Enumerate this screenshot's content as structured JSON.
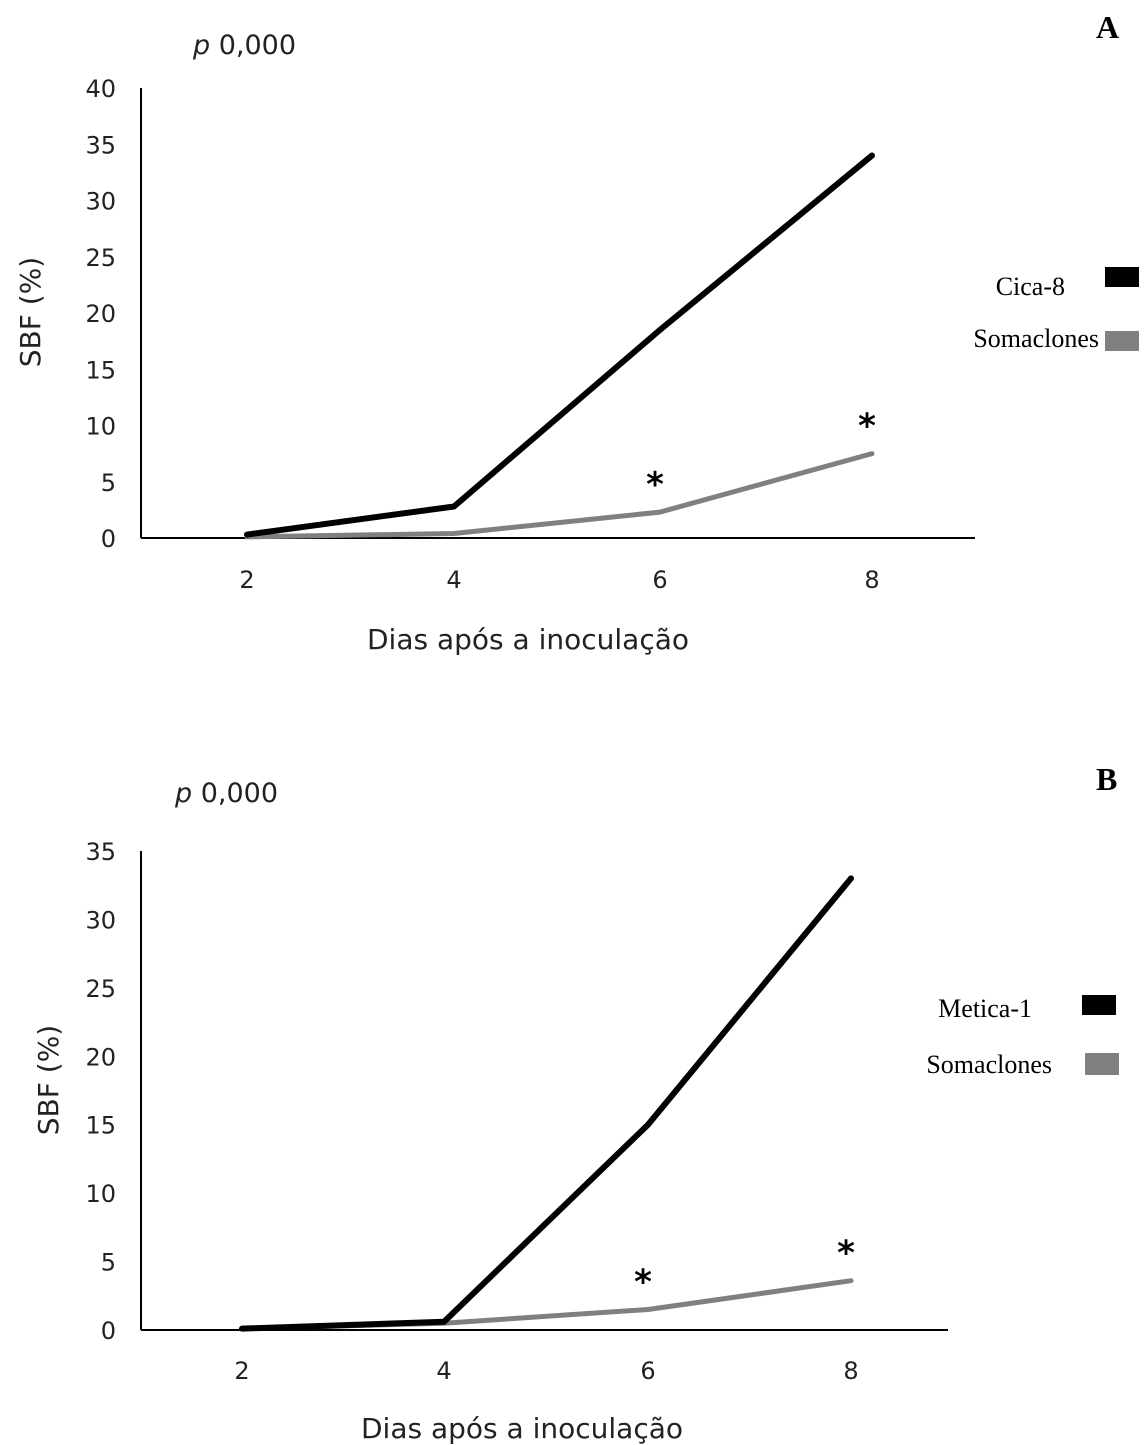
{
  "chart_data": [
    {
      "type": "line",
      "panel_label": "A",
      "annotation": "p 0,000",
      "x": [
        2,
        4,
        6,
        8
      ],
      "xlabel": "Dias após a inoculação",
      "ylabel": "SBF (%)",
      "ylim": [
        0,
        40
      ],
      "yticks": [
        0,
        5,
        10,
        15,
        20,
        25,
        30,
        35,
        40
      ],
      "series": [
        {
          "name": "Cica-8",
          "color": "#000000",
          "values": [
            0.3,
            2.8,
            18.5,
            34.0
          ]
        },
        {
          "name": "Somaclones",
          "color": "#808080",
          "values": [
            0.1,
            0.4,
            2.3,
            7.5
          ],
          "significant": [
            false,
            false,
            true,
            true
          ]
        }
      ],
      "significance_marker": "*",
      "legend_position": "right",
      "grid": false
    },
    {
      "type": "line",
      "panel_label": "B",
      "annotation": "p 0,000",
      "x": [
        2,
        4,
        6,
        8
      ],
      "xlabel": "Dias após a inoculação",
      "ylabel": "SBF (%)",
      "ylim": [
        0,
        35
      ],
      "yticks": [
        0,
        5,
        10,
        15,
        20,
        25,
        30,
        35
      ],
      "series": [
        {
          "name": "Metica-1",
          "color": "#000000",
          "values": [
            0.1,
            0.6,
            15.0,
            33.0
          ]
        },
        {
          "name": "Somaclones",
          "color": "#808080",
          "values": [
            0.1,
            0.5,
            1.5,
            3.6
          ],
          "significant": [
            false,
            false,
            true,
            true
          ]
        }
      ],
      "significance_marker": "*",
      "legend_position": "right",
      "grid": false
    }
  ]
}
